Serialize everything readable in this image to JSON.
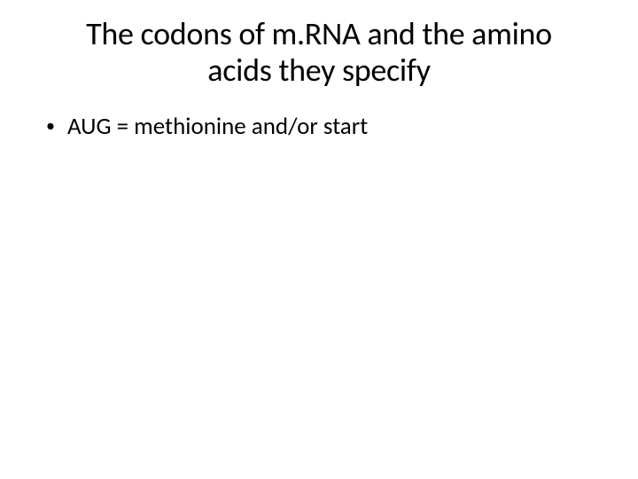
{
  "slide": {
    "title_line1": "The codons of m.RNA and the amino",
    "title_line2": "acids they specify",
    "bullets": [
      {
        "text": "AUG = methionine and/or start"
      }
    ]
  },
  "style": {
    "background_color": "#ffffff",
    "text_color": "#000000",
    "title_fontsize": 36,
    "title_fontweight": 400,
    "body_fontsize": 27,
    "font_family": "Calibri",
    "bullet_marker": "•"
  }
}
